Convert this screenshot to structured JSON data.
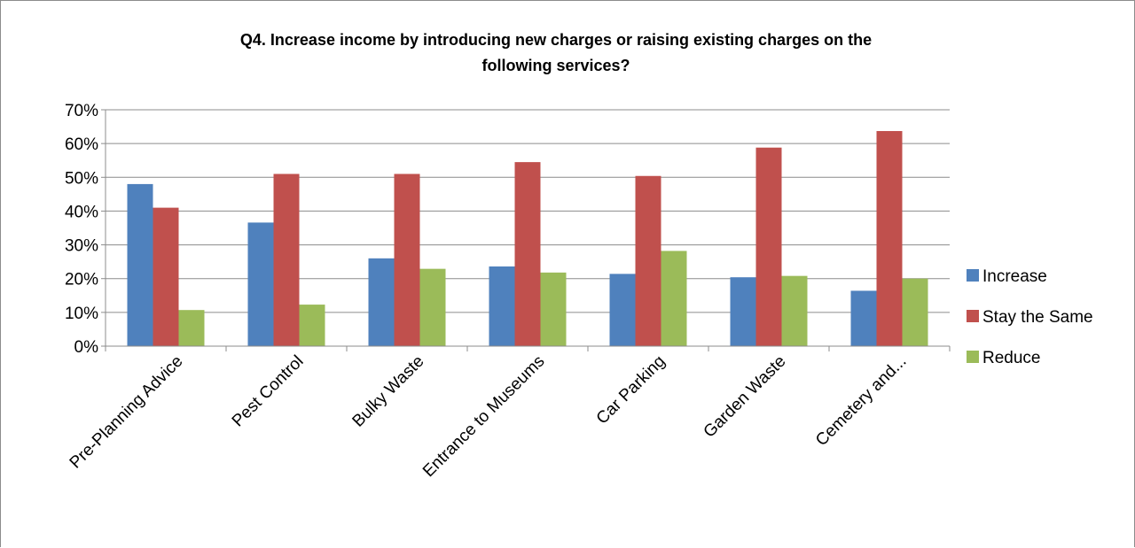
{
  "chart_data": {
    "type": "bar",
    "title_line1": "Q4.  Increase  income by introducing new charges or raising existing charges on the",
    "title_line2": "following services?",
    "categories": [
      "Pre-Planning Advice",
      "Pest Control",
      "Bulky Waste",
      "Entrance to Museums",
      "Car Parking",
      "Garden Waste",
      "Cemetery and..."
    ],
    "series": [
      {
        "name": "Increase",
        "color": "#4f81bd",
        "values": [
          48,
          36.6,
          26,
          23.6,
          21.4,
          20.4,
          16.4
        ]
      },
      {
        "name": "Stay the Same",
        "color": "#c0504d",
        "values": [
          41,
          51,
          51,
          54.5,
          50.4,
          58.8,
          63.7
        ]
      },
      {
        "name": "Reduce",
        "color": "#9bbb59",
        "values": [
          10.7,
          12.3,
          22.9,
          21.8,
          28.2,
          20.8,
          20
        ]
      }
    ],
    "ylim": [
      0,
      70
    ],
    "yticks": [
      0,
      10,
      20,
      30,
      40,
      50,
      60,
      70
    ],
    "ytick_labels": [
      "0%",
      "10%",
      "20%",
      "30%",
      "40%",
      "50%",
      "60%",
      "70%"
    ],
    "grid": true,
    "legend_position": "right"
  }
}
